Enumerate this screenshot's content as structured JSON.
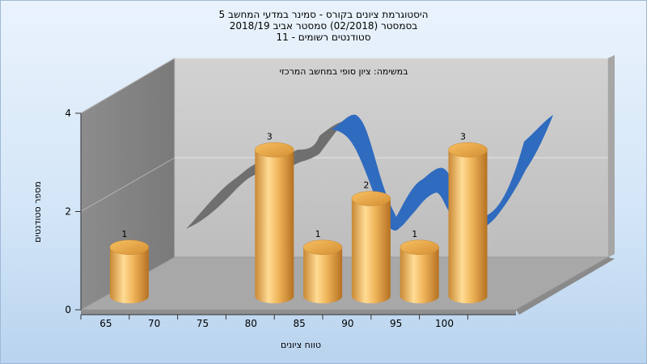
{
  "chart_data": {
    "type": "bar",
    "title_lines": [
      "היסטוגרמת ציונים בקורס - סמינר במדעי המחשב 5",
      "בסמסטר  (02/2018)  סמסטר אביב 2018/19",
      "סטודנטים רשומים - 11"
    ],
    "subtitle": "במשימה: ציון סופי במחשב המרכזי",
    "xlabel": "טווח ציונים",
    "ylabel": "מספר סטודנטים",
    "x_ticks": [
      "65",
      "70",
      "75",
      "80",
      "85",
      "90",
      "95",
      "100"
    ],
    "y_ticks": [
      "0",
      "2",
      "4"
    ],
    "ylim": [
      0,
      4
    ],
    "categories": [
      "65",
      "80",
      "85",
      "90",
      "95",
      "100"
    ],
    "values": [
      1,
      3,
      1,
      2,
      1,
      3
    ],
    "bar_labels": [
      "1",
      "3",
      "1",
      "2",
      "1",
      "3"
    ],
    "series_3d_line_note": "",
    "grid": true,
    "colors": {
      "bar_light": "#ffd98a",
      "bar_mid": "#e8a94a",
      "bar_dark": "#b87628",
      "back_wall": "#c0c0c0",
      "side_wall": "#8a8a8a",
      "floor": "#a9a9a9",
      "ribbon_front": "#2f6bbf",
      "ribbon_shadow": "#6e6e6e"
    }
  }
}
